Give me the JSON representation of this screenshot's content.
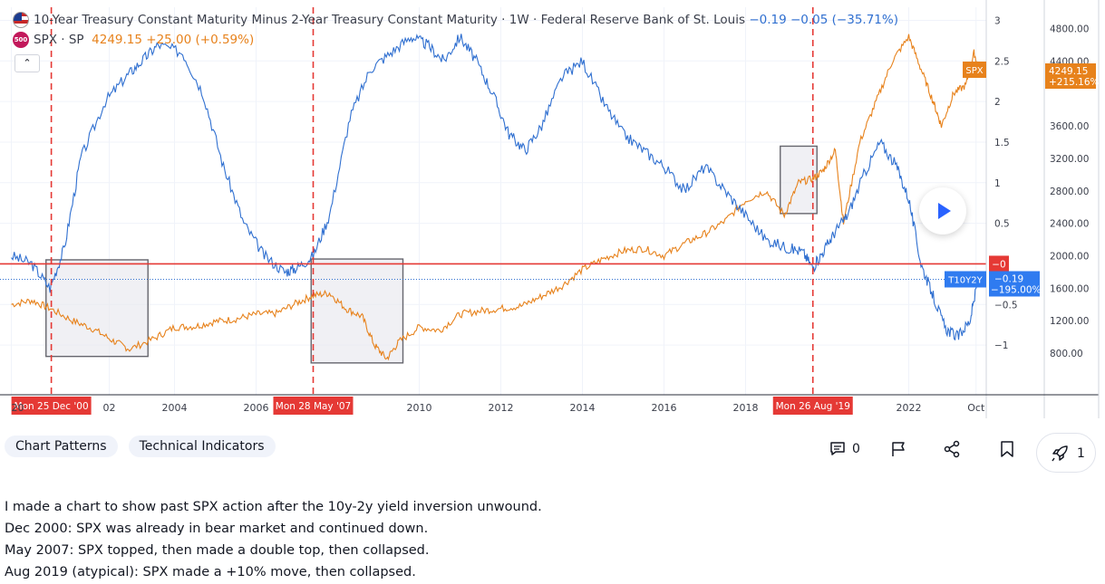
{
  "legend": {
    "t10y2y": {
      "title": "10-Year Treasury Constant Maturity Minus 2-Year Treasury Constant Maturity · 1W · Federal Reserve Bank of St. Louis",
      "values": "−0.19 −0.05 (−35.71%)"
    },
    "spx": {
      "icon_text": "500",
      "title": "SPX · SP",
      "values": "4249.15 +25.00 (+0.59%)"
    },
    "collapse_icon": "chevron-up-icon"
  },
  "colors": {
    "spread_line": "#2f6fd0",
    "spx_line": "#e7821c",
    "zero_line": "#e53935",
    "marker_line": "#e53935",
    "box_fill": "#e8e8ee",
    "box_stroke": "#66666e",
    "axis_text": "#3a3e4a",
    "label_bg_red": "#e53935",
    "label_bg_orange": "#e7821c",
    "label_bg_blue": "#2f7bf0"
  },
  "chart_data": {
    "type": "line",
    "x_labels": [
      "20",
      "02",
      "2004",
      "2006",
      "2010",
      "2012",
      "2014",
      "2016",
      "2018",
      "2022",
      "Oct"
    ],
    "date_markers": [
      "Mon 25 Dec '00",
      "Mon 28 May '07",
      "Mon 26 Aug '19"
    ],
    "left_axis_ticks": [
      "3",
      "2.5",
      "2",
      "1.5",
      "1",
      "0.5",
      "−0.5",
      "−1"
    ],
    "right_axis_ticks": [
      "4800.00",
      "4400.00",
      "3600.00",
      "3200.00",
      "2800.00",
      "2400.00",
      "2000.00",
      "1600.00",
      "1200.00",
      "800.00"
    ],
    "spx_price_label": "4249.15",
    "spx_change_label": "+215.16%",
    "spx_tag": "SPX",
    "zero_tag": "−0",
    "t10y2y_tag": "T10Y2Y",
    "t10y2y_value_label": "−0.19",
    "t10y2y_change_label": "−195.00%",
    "series": [
      {
        "name": "10-Year Treasury Constant Maturity Minus 2-Year Treasury Constant Maturity",
        "axis": "left",
        "x": [
          2000.0,
          2000.5,
          2000.95,
          2001.3,
          2001.7,
          2002.3,
          2002.8,
          2003.2,
          2003.6,
          2004.2,
          2004.7,
          2005.2,
          2005.7,
          2006.2,
          2006.7,
          2007.0,
          2007.4,
          2007.8,
          2008.3,
          2008.8,
          2009.3,
          2009.8,
          2010.2,
          2010.6,
          2011.0,
          2011.4,
          2011.8,
          2012.2,
          2012.6,
          2013.0,
          2013.5,
          2014.0,
          2014.5,
          2015.0,
          2015.5,
          2016.0,
          2016.5,
          2017.0,
          2017.5,
          2018.0,
          2018.5,
          2019.0,
          2019.4,
          2019.65,
          2019.9,
          2020.2,
          2020.5,
          2020.9,
          2021.3,
          2021.7,
          2022.0,
          2022.3,
          2022.6,
          2022.9,
          2023.2,
          2023.5,
          2023.7
        ],
        "values": [
          0.1,
          0.0,
          -0.3,
          0.2,
          1.3,
          2.0,
          2.3,
          2.5,
          2.7,
          2.6,
          2.1,
          1.2,
          0.5,
          0.1,
          -0.1,
          -0.05,
          0.1,
          0.6,
          1.8,
          2.4,
          2.6,
          2.8,
          2.7,
          2.5,
          2.8,
          2.5,
          2.1,
          1.6,
          1.4,
          1.7,
          2.3,
          2.5,
          2.0,
          1.6,
          1.4,
          1.2,
          0.9,
          1.2,
          0.9,
          0.6,
          0.3,
          0.2,
          0.15,
          -0.05,
          0.15,
          0.4,
          0.6,
          1.1,
          1.5,
          1.2,
          0.8,
          0.0,
          -0.4,
          -0.8,
          -0.9,
          -0.7,
          -0.2
        ]
      },
      {
        "name": "SPX · SP",
        "axis": "right",
        "x": [
          2000.0,
          2000.5,
          2000.95,
          2001.5,
          2002.0,
          2002.5,
          2002.9,
          2003.5,
          2004.0,
          2004.5,
          2005.0,
          2005.5,
          2006.0,
          2006.5,
          2007.0,
          2007.4,
          2007.8,
          2008.2,
          2008.6,
          2008.9,
          2009.2,
          2009.5,
          2010.0,
          2010.5,
          2011.0,
          2011.5,
          2012.0,
          2012.5,
          2013.0,
          2013.5,
          2014.0,
          2014.5,
          2015.0,
          2015.5,
          2016.0,
          2016.5,
          2017.0,
          2017.5,
          2018.0,
          2018.5,
          2018.95,
          2019.3,
          2019.65,
          2019.9,
          2020.2,
          2020.4,
          2020.8,
          2021.2,
          2021.6,
          2022.0,
          2022.3,
          2022.6,
          2022.8,
          2023.1,
          2023.4,
          2023.6,
          2023.75
        ],
        "values": [
          1400,
          1450,
          1350,
          1200,
          1100,
          950,
          850,
          980,
          1120,
          1130,
          1190,
          1220,
          1280,
          1290,
          1420,
          1510,
          1540,
          1350,
          1250,
          900,
          730,
          940,
          1120,
          1080,
          1280,
          1320,
          1350,
          1380,
          1500,
          1630,
          1830,
          1960,
          2060,
          2090,
          2000,
          2150,
          2270,
          2430,
          2680,
          2800,
          2500,
          2900,
          2950,
          3050,
          3300,
          2400,
          3400,
          3900,
          4400,
          4700,
          4300,
          3900,
          3600,
          4000,
          4100,
          4500,
          4249
        ]
      }
    ],
    "left_ylim": [
      -1.3,
      3.05
    ],
    "right_ylim": [
      600,
      4950
    ],
    "xlim": [
      1999.9,
      2023.9
    ]
  },
  "tags": [
    "Chart Patterns",
    "Technical Indicators"
  ],
  "actions": {
    "comments_count": "0",
    "boost_count": "1",
    "comment_icon": "comment-icon",
    "flag_icon": "flag-icon",
    "share_icon": "share-icon",
    "bookmark_icon": "bookmark-icon",
    "boost_icon": "rocket-icon"
  },
  "description": [
    "I made a chart to show past SPX action after the 10y-2y yield inversion unwound.",
    "Dec 2000: SPX was already in bear market and continued down.",
    "May 2007: SPX topped, then made a double top, then collapsed.",
    "Aug 2019 (atypical): SPX made a +10% move, then collapsed."
  ]
}
